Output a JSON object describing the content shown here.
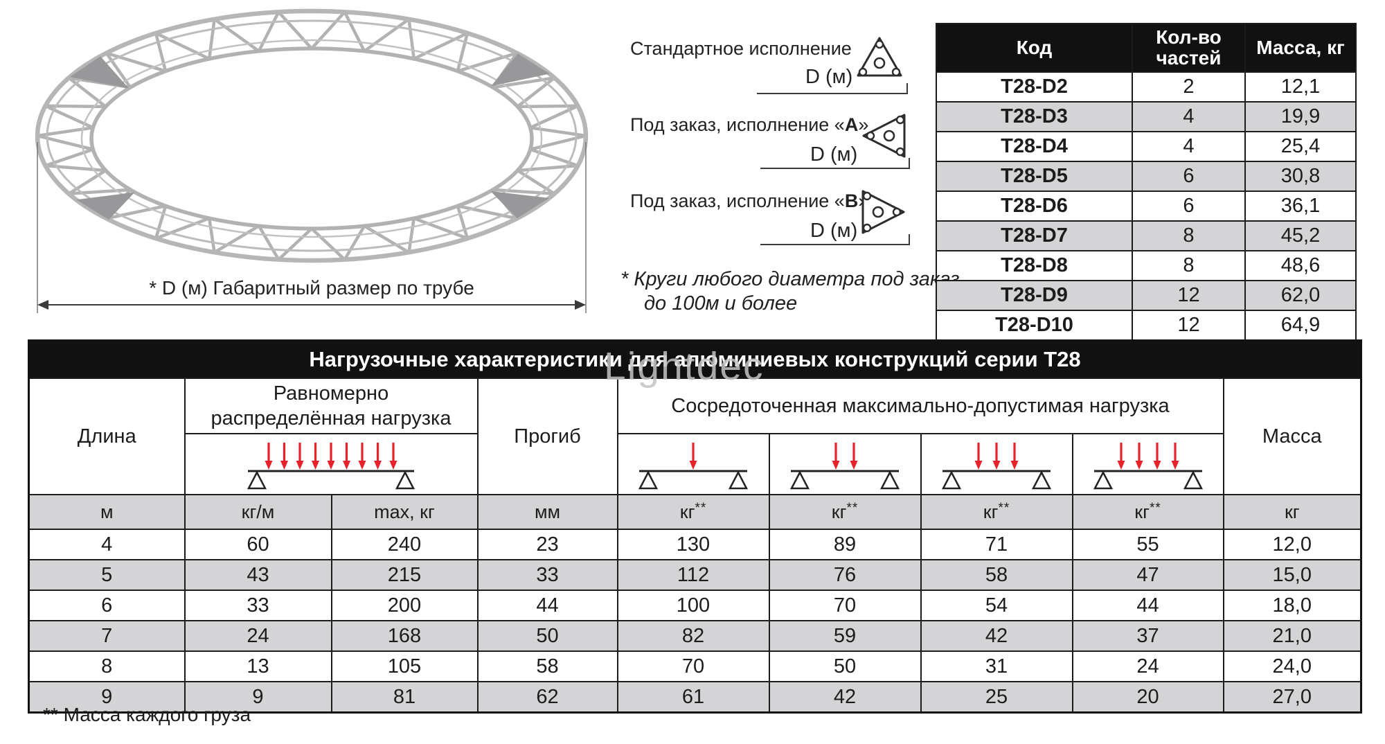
{
  "figure": {
    "dimension_caption": "* D (м)  Габаритный размер по трубе"
  },
  "executions": {
    "items": [
      {
        "prefix": "Стандартное исполнение",
        "letter": "",
        "suffix": "",
        "dim_label": "D (м)"
      },
      {
        "prefix": "Под заказ, исполнение «",
        "letter": "А",
        "suffix": "»",
        "dim_label": "D (м)"
      },
      {
        "prefix": "Под заказ, исполнение «",
        "letter": "B",
        "suffix": "»",
        "dim_label": "D (м)"
      }
    ],
    "note_line1": "* Круги любого диаметра под заказ",
    "note_line2": "до 100м и более"
  },
  "parts_table": {
    "headers": [
      "Код",
      "Кол-во частей",
      "Масса, кг"
    ],
    "rows": [
      [
        "T28-D2",
        "2",
        "12,1"
      ],
      [
        "T28-D3",
        "4",
        "19,9"
      ],
      [
        "T28-D4",
        "4",
        "25,4"
      ],
      [
        "T28-D5",
        "6",
        "30,8"
      ],
      [
        "T28-D6",
        "6",
        "36,1"
      ],
      [
        "T28-D7",
        "8",
        "45,2"
      ],
      [
        "T28-D8",
        "8",
        "48,6"
      ],
      [
        "T28-D9",
        "12",
        "62,0"
      ],
      [
        "T28-D10",
        "12",
        "64,9"
      ]
    ]
  },
  "load_table": {
    "title": "Нагрузочные характеристики для алюминиевых конструкций серии Т28",
    "col_length": "Длина",
    "col_uniform": "Равномерно\nраспределённая нагрузка",
    "col_deflection": "Прогиб",
    "col_concentrated": "Сосредоточенная максимально-допустимая нагрузка",
    "col_mass": "Масса",
    "units": [
      "м",
      "кг/м",
      "max, кг",
      "мм",
      "кг",
      "кг",
      "кг",
      "кг",
      "кг"
    ],
    "unit_sups": [
      "",
      "",
      "",
      "",
      "**",
      "**",
      "**",
      "**",
      ""
    ],
    "diagrams": {
      "uniform_arrows": 9,
      "concentrated_arrows": [
        1,
        2,
        3,
        4
      ]
    },
    "rows": [
      [
        "4",
        "60",
        "240",
        "23",
        "130",
        "89",
        "71",
        "55",
        "12,0"
      ],
      [
        "5",
        "43",
        "215",
        "33",
        "112",
        "76",
        "58",
        "47",
        "15,0"
      ],
      [
        "6",
        "33",
        "200",
        "44",
        "100",
        "70",
        "54",
        "44",
        "18,0"
      ],
      [
        "7",
        "24",
        "168",
        "50",
        "82",
        "59",
        "42",
        "37",
        "21,0"
      ],
      [
        "8",
        "13",
        "105",
        "58",
        "70",
        "50",
        "31",
        "24",
        "24,0"
      ],
      [
        "9",
        "9",
        "81",
        "62",
        "61",
        "42",
        "25",
        "20",
        "27,0"
      ]
    ],
    "footnote": "** Масса каждого груза"
  },
  "watermark": "Lightdec",
  "colors": {
    "header_bg": "#111111",
    "row_alt": "#d4d4d6",
    "arrow_red": "#e8212b",
    "border": "#1c1c1c",
    "watermark": "#c4c4c4"
  }
}
